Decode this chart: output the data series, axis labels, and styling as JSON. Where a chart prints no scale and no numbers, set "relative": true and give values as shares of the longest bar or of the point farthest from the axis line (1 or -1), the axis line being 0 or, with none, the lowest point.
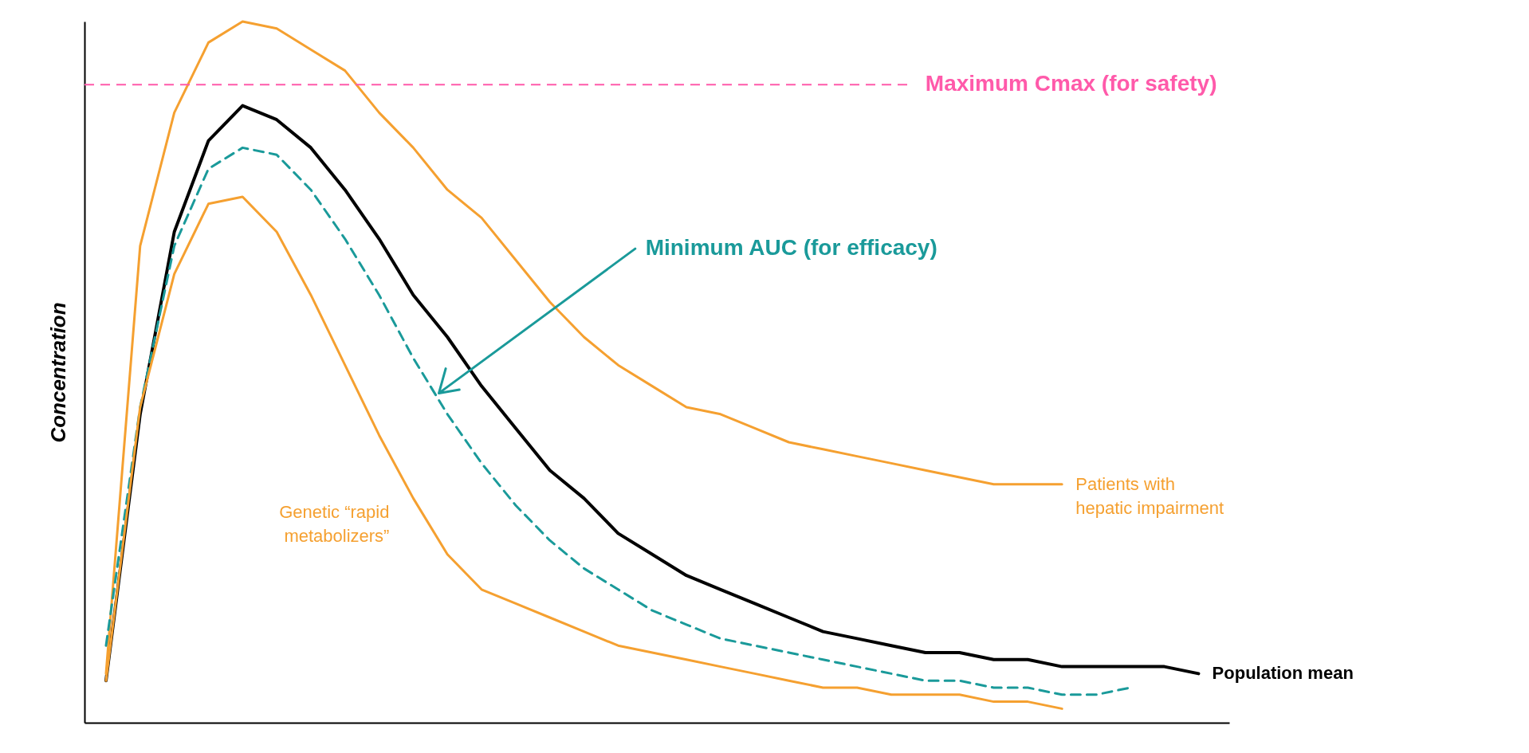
{
  "chart_data": {
    "type": "line",
    "relative": true,
    "ylabel": "Concentration",
    "grid": false,
    "categories": [
      null,
      null,
      null,
      null,
      null,
      null,
      null,
      null,
      null,
      null,
      null,
      null,
      null,
      null,
      null,
      null,
      null,
      null,
      null,
      null,
      null,
      null,
      null,
      null,
      null,
      null,
      null,
      null,
      null,
      null,
      null,
      null,
      null
    ],
    "series": [
      {
        "name": "Population mean",
        "color": "#000000",
        "line_style": "solid",
        "values": [
          0.06,
          0.44,
          0.7,
          0.83,
          0.88,
          0.86,
          0.82,
          0.76,
          0.69,
          0.61,
          0.55,
          0.48,
          0.42,
          0.36,
          0.32,
          0.27,
          0.24,
          0.21,
          0.19,
          0.17,
          0.15,
          0.13,
          0.12,
          0.11,
          0.1,
          0.1,
          0.09,
          0.09,
          0.08,
          0.08,
          0.08,
          0.08,
          0.07
        ]
      },
      {
        "name": "Patients with hepatic impairment",
        "color": "#f5a030",
        "line_style": "solid",
        "values": [
          0.07,
          0.68,
          0.87,
          0.97,
          1.0,
          0.99,
          0.96,
          0.93,
          0.87,
          0.82,
          0.76,
          0.72,
          0.66,
          0.6,
          0.55,
          0.51,
          0.48,
          0.45,
          0.44,
          0.42,
          0.4,
          0.39,
          0.38,
          0.37,
          0.36,
          0.35,
          0.34,
          0.34,
          0.34,
          null,
          null,
          null,
          null
        ]
      },
      {
        "color": "#1a9a9a",
        "line_style": "dashed",
        "values": [
          0.11,
          0.45,
          0.68,
          0.79,
          0.82,
          0.81,
          0.76,
          0.69,
          0.61,
          0.52,
          0.44,
          0.37,
          0.31,
          0.26,
          0.22,
          0.19,
          0.16,
          0.14,
          0.12,
          0.11,
          0.1,
          0.09,
          0.08,
          0.07,
          0.06,
          0.06,
          0.05,
          0.05,
          0.04,
          0.04,
          0.05,
          null,
          null
        ]
      },
      {
        "name": "Genetic “rapid metabolizers”",
        "color": "#f5a030",
        "line_style": "solid",
        "values": [
          0.06,
          0.45,
          0.64,
          0.74,
          0.75,
          0.7,
          0.61,
          0.51,
          0.41,
          0.32,
          0.24,
          0.19,
          0.17,
          0.15,
          0.13,
          0.11,
          0.1,
          0.09,
          0.08,
          0.07,
          0.06,
          0.05,
          0.05,
          0.04,
          0.04,
          0.04,
          0.03,
          0.03,
          0.02,
          null,
          null,
          null,
          null
        ]
      }
    ],
    "ref_lines": [
      {
        "axis": "y",
        "value": 0.91,
        "label": "Maximum Cmax (for safety)",
        "color": "#ff5aaa",
        "line_style": "dashed"
      }
    ],
    "annotations": [
      "Minimum AUC (for efficacy)"
    ]
  }
}
